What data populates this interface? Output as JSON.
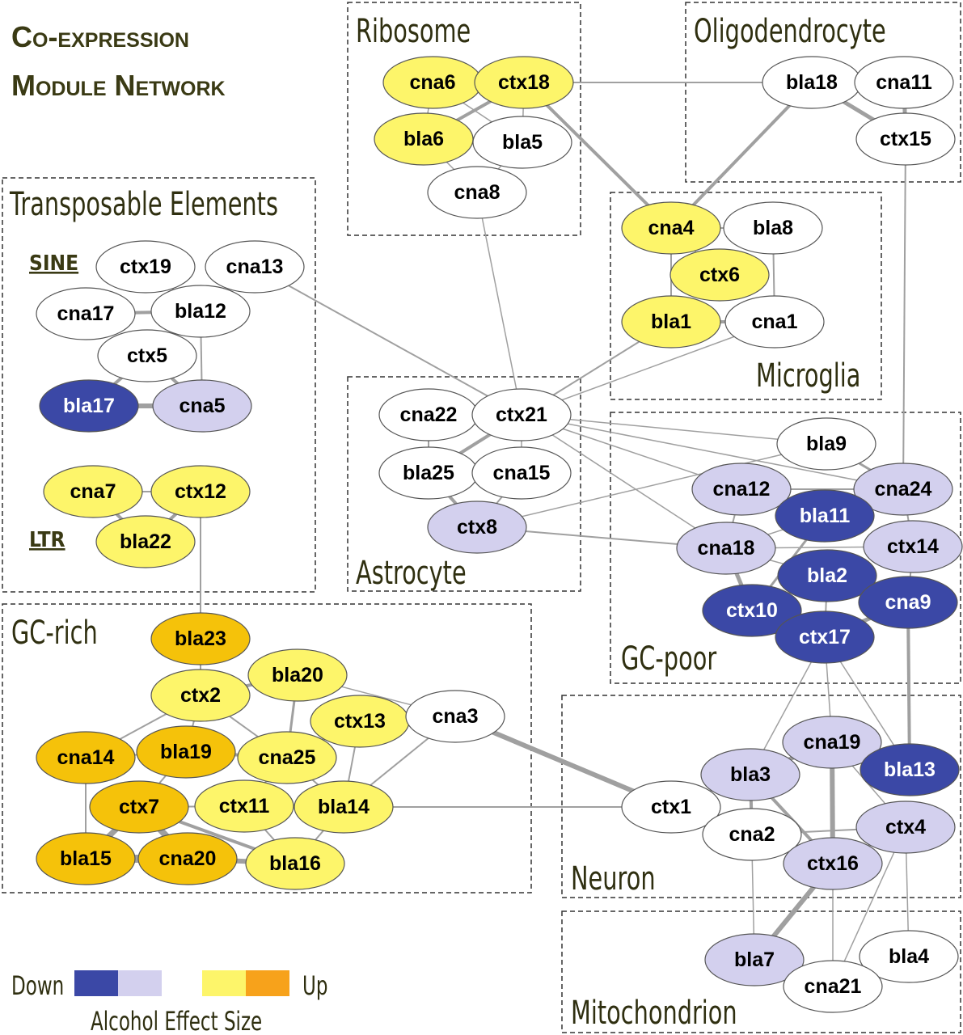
{
  "title": [
    "Co-expression",
    "Module Network"
  ],
  "modules": [
    "Ribosome",
    "Oligodendrocyte",
    "Transposable Elements",
    "Microglia",
    "Astrocyte",
    "GC-poor",
    "GC-rich",
    "Neuron",
    "Mitochondrion"
  ],
  "subgroups": [
    "SINE",
    "LTR"
  ],
  "nodes": [
    {
      "label": "cna6",
      "color": "#fdf56a"
    },
    {
      "label": "ctx18",
      "color": "#fdf56a"
    },
    {
      "label": "bla6",
      "color": "#fdf56a"
    },
    {
      "label": "bla5",
      "color": "#ffffff"
    },
    {
      "label": "cna8",
      "color": "#ffffff"
    },
    {
      "label": "bla18",
      "color": "#ffffff"
    },
    {
      "label": "cna11",
      "color": "#ffffff"
    },
    {
      "label": "ctx15",
      "color": "#ffffff"
    },
    {
      "label": "cna4",
      "color": "#fdf56a"
    },
    {
      "label": "bla8",
      "color": "#ffffff"
    },
    {
      "label": "ctx6",
      "color": "#fdf56a"
    },
    {
      "label": "bla1",
      "color": "#fdf56a"
    },
    {
      "label": "cna1",
      "color": "#ffffff"
    },
    {
      "label": "ctx19",
      "color": "#ffffff"
    },
    {
      "label": "cna13",
      "color": "#ffffff"
    },
    {
      "label": "cna17",
      "color": "#ffffff"
    },
    {
      "label": "bla12",
      "color": "#ffffff"
    },
    {
      "label": "ctx5",
      "color": "#ffffff"
    },
    {
      "label": "bla17",
      "color": "#3b48a6"
    },
    {
      "label": "cna5",
      "color": "#d3d0ee"
    },
    {
      "label": "cna7",
      "color": "#fdf56a"
    },
    {
      "label": "ctx12",
      "color": "#fdf56a"
    },
    {
      "label": "bla22",
      "color": "#fdf56a"
    },
    {
      "label": "cna22",
      "color": "#ffffff"
    },
    {
      "label": "ctx21",
      "color": "#ffffff"
    },
    {
      "label": "bla25",
      "color": "#ffffff"
    },
    {
      "label": "cna15",
      "color": "#ffffff"
    },
    {
      "label": "ctx8",
      "color": "#d3d0ee"
    },
    {
      "label": "bla9",
      "color": "#ffffff"
    },
    {
      "label": "cna12",
      "color": "#d3d0ee"
    },
    {
      "label": "cna24",
      "color": "#d3d0ee"
    },
    {
      "label": "bla11",
      "color": "#3b48a6"
    },
    {
      "label": "cna18",
      "color": "#d3d0ee"
    },
    {
      "label": "ctx14",
      "color": "#d3d0ee"
    },
    {
      "label": "bla2",
      "color": "#3b48a6"
    },
    {
      "label": "ctx10",
      "color": "#3b48a6"
    },
    {
      "label": "cna9",
      "color": "#3b48a6"
    },
    {
      "label": "ctx17",
      "color": "#3b48a6"
    },
    {
      "label": "bla23",
      "color": "#f5c20a"
    },
    {
      "label": "bla20",
      "color": "#fdf56a"
    },
    {
      "label": "ctx2",
      "color": "#fdf56a"
    },
    {
      "label": "ctx13",
      "color": "#fdf56a"
    },
    {
      "label": "cna3",
      "color": "#ffffff"
    },
    {
      "label": "cna14",
      "color": "#f5c20a"
    },
    {
      "label": "bla19",
      "color": "#f5c20a"
    },
    {
      "label": "cna25",
      "color": "#fdf56a"
    },
    {
      "label": "ctx7",
      "color": "#f5c20a"
    },
    {
      "label": "ctx11",
      "color": "#fdf56a"
    },
    {
      "label": "bla14",
      "color": "#fdf56a"
    },
    {
      "label": "bla15",
      "color": "#f5c20a"
    },
    {
      "label": "cna20",
      "color": "#f5c20a"
    },
    {
      "label": "bla16",
      "color": "#fdf56a"
    },
    {
      "label": "cna19",
      "color": "#d3d0ee"
    },
    {
      "label": "bla3",
      "color": "#d3d0ee"
    },
    {
      "label": "bla13",
      "color": "#3b48a6"
    },
    {
      "label": "ctx1",
      "color": "#ffffff"
    },
    {
      "label": "cna2",
      "color": "#ffffff"
    },
    {
      "label": "ctx4",
      "color": "#d3d0ee"
    },
    {
      "label": "ctx16",
      "color": "#d3d0ee"
    },
    {
      "label": "bla7",
      "color": "#d3d0ee"
    },
    {
      "label": "bla4",
      "color": "#ffffff"
    },
    {
      "label": "cna21",
      "color": "#ffffff"
    }
  ],
  "legend": {
    "down": "Down",
    "up": "Up",
    "caption": "Alcohol Effect Size",
    "colors": [
      "#3b48a6",
      "#d3d0ee",
      "#fdf56a",
      "#f7a21b"
    ]
  }
}
